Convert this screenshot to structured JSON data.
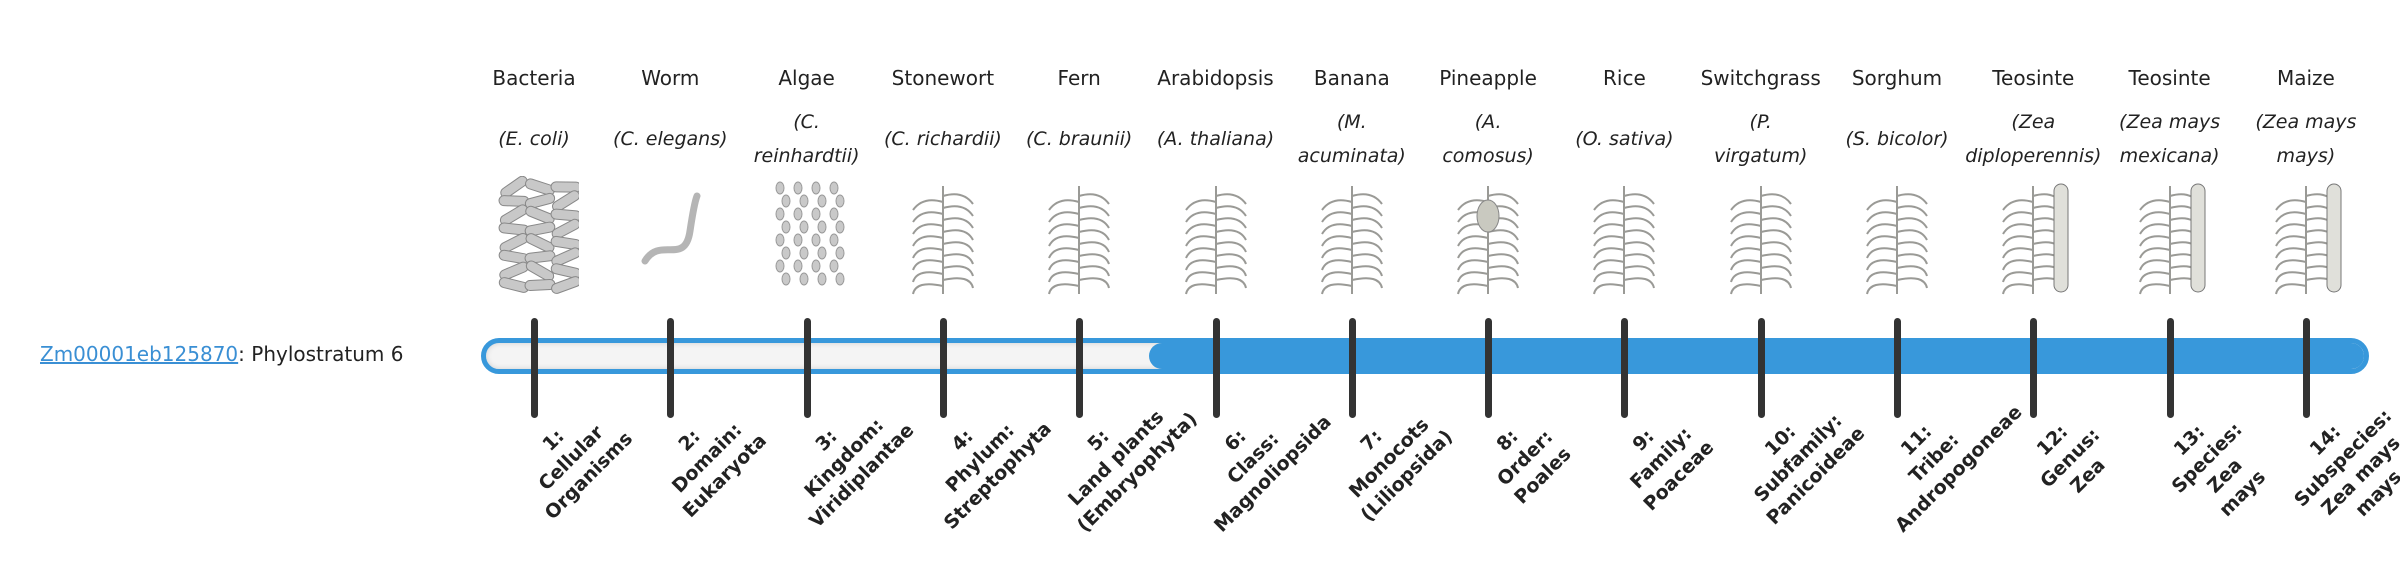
{
  "gene": {
    "id": "Zm00001eb125870",
    "separator": ":",
    "stratum_text": " Phylostratum 6",
    "phylostratum": 6
  },
  "colors": {
    "accent": "#3898db",
    "tick": "#333333",
    "link": "#3a8fd4"
  },
  "organisms": [
    {
      "name": "Bacteria",
      "species_lines": [
        "(E. coli)"
      ],
      "icon": "bacteria-illustration"
    },
    {
      "name": "Worm",
      "species_lines": [
        "(C. elegans)"
      ],
      "icon": "worm-illustration"
    },
    {
      "name": "Algae",
      "species_lines": [
        "(C.",
        "reinhardtii)"
      ],
      "icon": "algae-illustration"
    },
    {
      "name": "Stonewort",
      "species_lines": [
        "(C. richardii)"
      ],
      "icon": "stonewort-illustration"
    },
    {
      "name": "Fern",
      "species_lines": [
        "(C. braunii)"
      ],
      "icon": "fern-illustration"
    },
    {
      "name": "Arabidopsis",
      "species_lines": [
        "(A. thaliana)"
      ],
      "icon": "arabidopsis-illustration"
    },
    {
      "name": "Banana",
      "species_lines": [
        "(M.",
        "acuminata)"
      ],
      "icon": "banana-illustration"
    },
    {
      "name": "Pineapple",
      "species_lines": [
        "(A.",
        "comosus)"
      ],
      "icon": "pineapple-illustration"
    },
    {
      "name": "Rice",
      "species_lines": [
        "(O. sativa)"
      ],
      "icon": "rice-illustration"
    },
    {
      "name": "Switchgrass",
      "species_lines": [
        "(P.",
        "virgatum)"
      ],
      "icon": "switchgrass-illustration"
    },
    {
      "name": "Sorghum",
      "species_lines": [
        "(S. bicolor)"
      ],
      "icon": "sorghum-illustration"
    },
    {
      "name": "Teosinte",
      "species_lines": [
        "(Zea",
        "diploperennis)"
      ],
      "icon": "teosinte-illustration"
    },
    {
      "name": "Teosinte",
      "species_lines": [
        "(Zea mays",
        "mexicana)"
      ],
      "icon": "teosinte-illustration"
    },
    {
      "name": "Maize",
      "species_lines": [
        "(Zea mays",
        "mays)"
      ],
      "icon": "maize-illustration"
    }
  ],
  "strata": [
    [
      "1:",
      "Cellular",
      "Organisms"
    ],
    [
      "2:",
      "Domain:",
      "Eukaryota"
    ],
    [
      "3:",
      "Kingdom:",
      "Viridiplantae"
    ],
    [
      "4:",
      "Phylum:",
      "Streptophyta"
    ],
    [
      "5:",
      "Land plants",
      "(Embryophyta)"
    ],
    [
      "6:",
      "Class:",
      "Magnoliopsida"
    ],
    [
      "7:",
      "Monocots",
      "(Liliopsida)"
    ],
    [
      "8:",
      "Order:",
      "Poales"
    ],
    [
      "9:",
      "Family:",
      "Poaceae"
    ],
    [
      "10:",
      "Subfamily:",
      "Panicoideae"
    ],
    [
      "11:",
      "Tribe:",
      "Andropogoneae"
    ],
    [
      "12:",
      "Genus:",
      "Zea"
    ],
    [
      "13:",
      "Species:",
      "Zea",
      "mays"
    ],
    [
      "14:",
      "Subspecies:",
      "Zea mays",
      "mays"
    ]
  ]
}
